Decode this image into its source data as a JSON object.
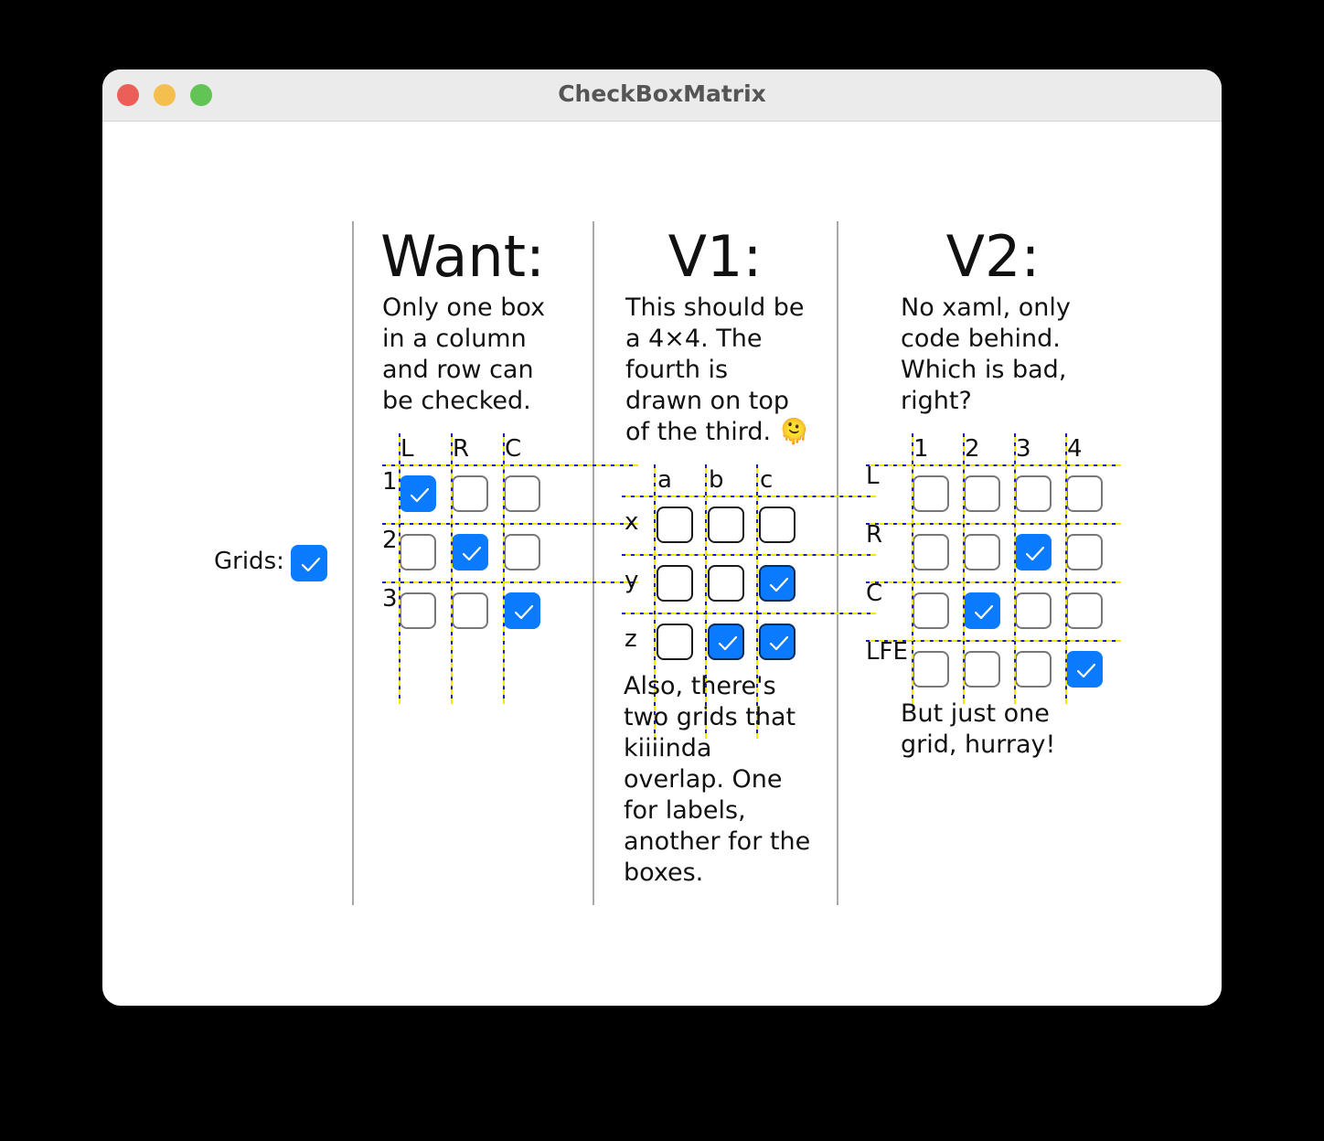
{
  "window": {
    "title": "CheckBoxMatrix",
    "traffic_lights": [
      "#ec5f59",
      "#f5bf4f",
      "#61c454"
    ]
  },
  "grids_toggle": {
    "label": "Grids:",
    "checked": true
  },
  "colors": {
    "accent": "#0a7aff",
    "grid_line_a": "#1a1acc",
    "grid_line_b": "#f4e800"
  },
  "want": {
    "heading": "Want:",
    "text": "Only one box\nin a column\nand row can\nbe checked.",
    "columns": [
      "L",
      "R",
      "C"
    ],
    "rows": [
      "1",
      "2",
      "3"
    ],
    "checked": [
      [
        true,
        false,
        false
      ],
      [
        false,
        true,
        false
      ],
      [
        false,
        false,
        true
      ]
    ]
  },
  "v1": {
    "heading": "V1:",
    "text": "This should be\na 4×4. The\nfourth is\ndrawn on top\nof the third. 🫠",
    "columns": [
      "a",
      "b",
      "c"
    ],
    "rows": [
      "x",
      "y",
      "z"
    ],
    "checked": [
      [
        false,
        false,
        false
      ],
      [
        false,
        false,
        true
      ],
      [
        false,
        true,
        true
      ]
    ],
    "note": "Also, there's\ntwo grids that\nkiiiinda\noverlap. One\nfor labels,\nanother for the\nboxes."
  },
  "v2": {
    "heading": "V2:",
    "text": "No xaml, only\ncode behind.\nWhich is bad,\nright?",
    "columns": [
      "1",
      "2",
      "3",
      "4"
    ],
    "rows": [
      "L",
      "R",
      "C",
      "LFE"
    ],
    "checked": [
      [
        false,
        false,
        false,
        false
      ],
      [
        false,
        false,
        true,
        false
      ],
      [
        false,
        true,
        false,
        false
      ],
      [
        false,
        false,
        false,
        true
      ]
    ],
    "note": "But just one\ngrid, hurray!"
  }
}
